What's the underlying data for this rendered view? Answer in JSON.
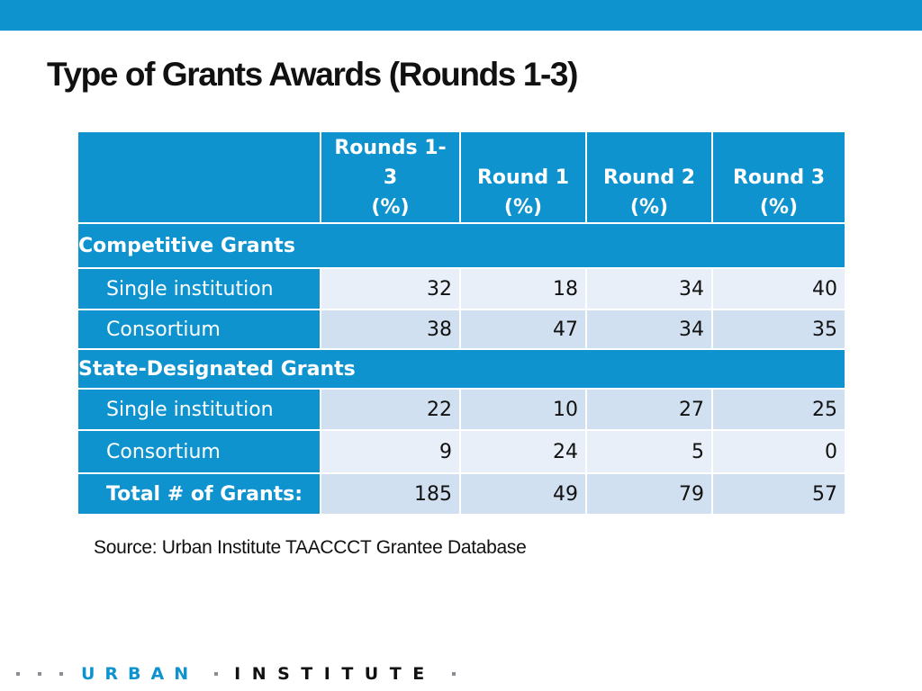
{
  "title": "Type of Grants Awards (Rounds 1-3)",
  "table": {
    "headers": [
      {
        "lines": [
          "Rounds 1-",
          "3",
          "(%)"
        ]
      },
      {
        "lines": [
          "Round 1",
          "(%)"
        ]
      },
      {
        "lines": [
          "Round 2",
          "(%)"
        ]
      },
      {
        "lines": [
          "Round 3",
          "(%)"
        ]
      }
    ],
    "sections": [
      {
        "title": "Competitive Grants",
        "rows": [
          {
            "label": "Single institution",
            "values": [
              "32",
              "18",
              "34",
              "40"
            ]
          },
          {
            "label": "Consortium",
            "values": [
              "38",
              "47",
              "34",
              "35"
            ]
          }
        ]
      },
      {
        "title": "State-Designated Grants",
        "rows": [
          {
            "label": "Single institution",
            "values": [
              "22",
              "10",
              "27",
              "25"
            ]
          },
          {
            "label": "Consortium",
            "values": [
              "9",
              "24",
              "5",
              "0"
            ]
          }
        ]
      }
    ],
    "total": {
      "label": "Total # of Grants:",
      "values": [
        "185",
        "49",
        "79",
        "57"
      ]
    }
  },
  "source": "Source: Urban Institute TAACCCT Grantee Database",
  "footer": {
    "logo_urban": "URBAN",
    "logo_institute": "INSTITUTE"
  },
  "colors": {
    "accent": "#0f93cf",
    "cell_light": "#e8eff8",
    "cell_dark": "#d0e0f0",
    "text": "#111111"
  }
}
